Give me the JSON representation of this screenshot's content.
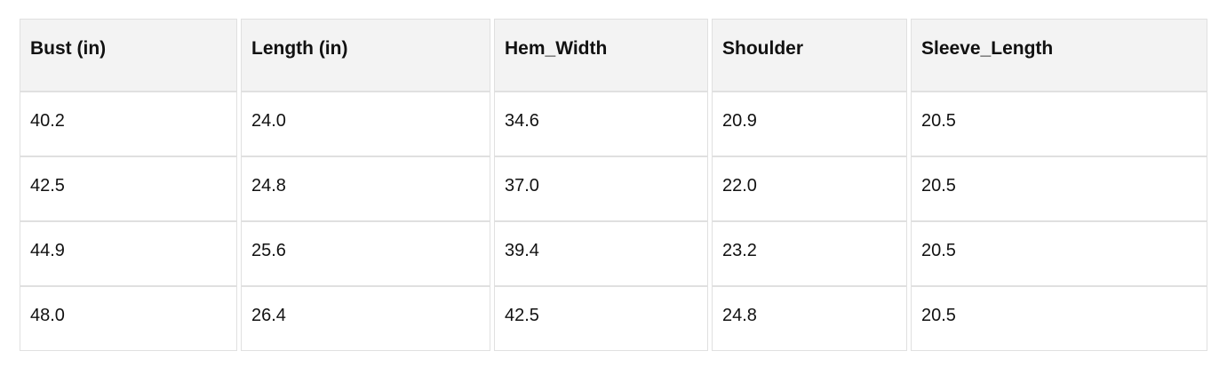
{
  "chart_data": {
    "type": "table",
    "title": "",
    "columns": [
      "Bust (in)",
      "Length (in)",
      "Hem_Width",
      "Shoulder",
      "Sleeve_Length"
    ],
    "rows": [
      [
        40.2,
        24.0,
        34.6,
        20.9,
        20.5
      ],
      [
        42.5,
        24.8,
        37.0,
        22.0,
        20.5
      ],
      [
        44.9,
        25.6,
        39.4,
        23.2,
        20.5
      ],
      [
        48.0,
        26.4,
        42.5,
        24.8,
        20.5
      ]
    ]
  },
  "table": {
    "headers": [
      "Bust (in)",
      "Length (in)",
      "Hem_Width",
      "Shoulder",
      "Sleeve_Length"
    ],
    "rows": [
      [
        "40.2",
        "24.0",
        "34.6",
        "20.9",
        "20.5"
      ],
      [
        "42.5",
        "24.8",
        "37.0",
        "22.0",
        "20.5"
      ],
      [
        "44.9",
        "25.6",
        "39.4",
        "23.2",
        "20.5"
      ],
      [
        "48.0",
        "26.4",
        "42.5",
        "24.8",
        "20.5"
      ]
    ]
  },
  "colors": {
    "header_background": "#f3f3f3",
    "cell_background": "#ffffff",
    "border": "#e0e0e0",
    "text": "#111111"
  }
}
